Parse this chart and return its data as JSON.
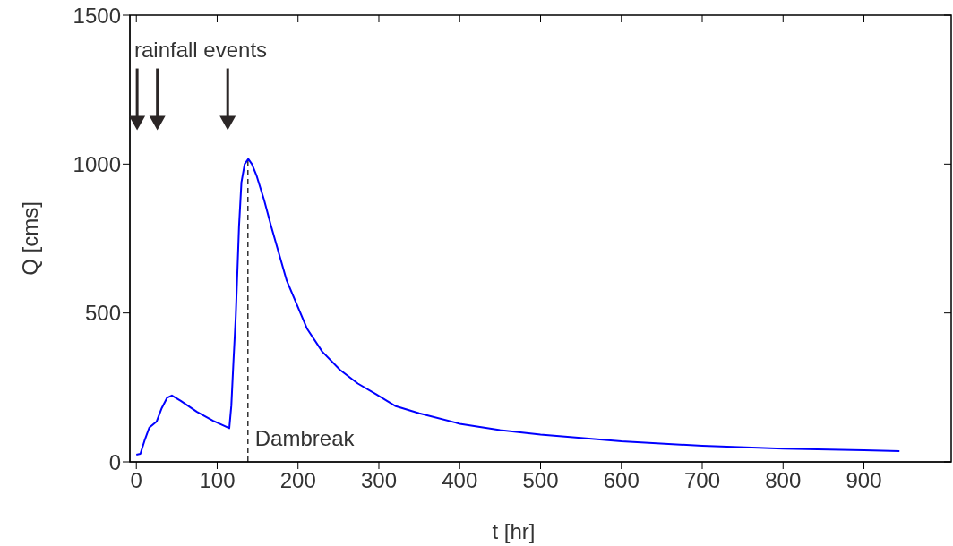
{
  "chart_data": {
    "type": "line",
    "xlabel": "t [hr]",
    "ylabel": "Q [cms]",
    "xlim": [
      -8,
      1008
    ],
    "ylim": [
      0,
      1500
    ],
    "xticks": [
      0,
      100,
      200,
      300,
      400,
      500,
      600,
      700,
      800,
      900
    ],
    "yticks": [
      0,
      500,
      1000,
      1500
    ],
    "grid": false,
    "legend": false,
    "marker": "none",
    "line_style": "solid",
    "x": [
      0,
      5,
      10,
      16,
      25,
      31,
      38,
      44,
      55,
      75,
      95,
      115,
      117.5,
      120,
      123,
      127,
      130,
      134,
      138.5,
      143,
      149,
      158,
      167,
      186,
      211,
      230,
      252,
      274,
      296,
      320,
      350,
      400,
      450,
      500,
      600,
      700,
      800,
      900,
      944
    ],
    "series": [
      {
        "color": "#0000ff",
        "values": [
          24,
          27,
          70,
          115,
          135,
          178,
          215,
          223,
          205,
          168,
          138,
          113,
          189,
          330,
          489,
          789,
          939,
          1000,
          1017,
          1000,
          959,
          880,
          789,
          609,
          448,
          370,
          309,
          263,
          228,
          188,
          163,
          128,
          107,
          92,
          69,
          54,
          44,
          39,
          36
        ]
      }
    ],
    "ref_lines": [
      {
        "axis": "x",
        "value": 138,
        "label": "Dambreak",
        "color": "#333333",
        "line_style": "dashed"
      }
    ],
    "annotations": [
      "rainfall events"
    ]
  }
}
